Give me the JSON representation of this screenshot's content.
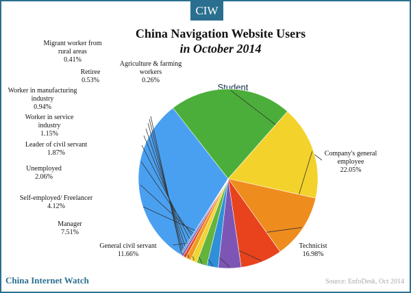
{
  "brand_badge": "CIW",
  "footer": {
    "brand": "China Internet Watch",
    "source": "Source: EnfoDesk, Oct 2014"
  },
  "chart_data": {
    "type": "pie",
    "title": "China Navigation Website Users",
    "subtitle": "in October 2014",
    "unit": "%",
    "slices": [
      {
        "label": "Student",
        "value": 30.46,
        "display": "30.46%",
        "color": "#4aa0f0"
      },
      {
        "label": "Company's general employee",
        "value": 22.05,
        "display": "22.05%",
        "color": "#4cae3a"
      },
      {
        "label": "Technicist",
        "value": 16.98,
        "display": "16.98%",
        "color": "#f3d22b"
      },
      {
        "label": "General civil servant",
        "value": 11.66,
        "display": "11.66%",
        "color": "#ef8c1e"
      },
      {
        "label": "Manager",
        "value": 7.51,
        "display": "7.51%",
        "color": "#e8431d"
      },
      {
        "label": "Self-employed/ Freelancer",
        "value": 4.12,
        "display": "4.12%",
        "color": "#7d56b5"
      },
      {
        "label": "Unemployed",
        "value": 2.06,
        "display": "2.06%",
        "color": "#2f8fd8"
      },
      {
        "label": "Leader of civil servant",
        "value": 1.87,
        "display": "1.87%",
        "color": "#64b43c"
      },
      {
        "label": "Worker in service industry",
        "value": 1.15,
        "display": "1.15%",
        "color": "#f0d431"
      },
      {
        "label": "Worker in manufacturing industry",
        "value": 0.94,
        "display": "0.94%",
        "color": "#f09a22"
      },
      {
        "label": "Retiree",
        "value": 0.53,
        "display": "0.53%",
        "color": "#e54d22"
      },
      {
        "label": "Migrant worker from rural areas",
        "value": 0.41,
        "display": "0.41%",
        "color": "#8a5ab8"
      },
      {
        "label": "Agriculture & farming workers",
        "value": 0.26,
        "display": "0.26%",
        "color": "#3d90d2"
      }
    ]
  }
}
